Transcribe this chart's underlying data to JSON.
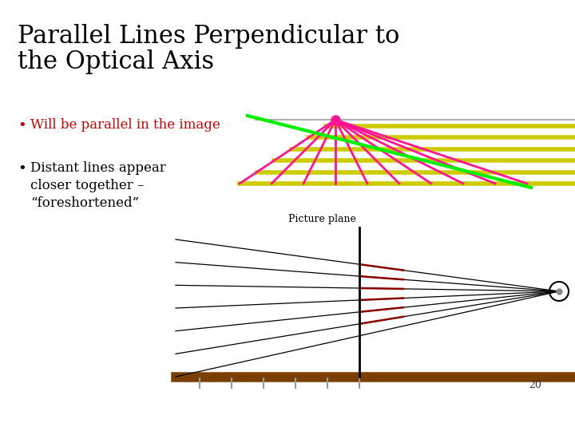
{
  "title_line1": "Parallel Lines Perpendicular to",
  "title_line2": "the Optical Axis",
  "bullet1_text": "Will be parallel in the image",
  "bullet2_text": "Distant lines appear\ncloser together –\n“foreshortened”",
  "background_color": "#ffffff",
  "title_color": "#000000",
  "bullet1_color": "#cc0000",
  "bullet2_color": "#000000",
  "magenta_color": "#ff1493",
  "green_color": "#00ee00",
  "yellow_color": "#cccc00",
  "gray_color": "#b0b0b0",
  "brown_color": "#7B3F00",
  "dark_red_color": "#8B0000",
  "picture_plane_label": "Picture plane",
  "axis_label": "20"
}
